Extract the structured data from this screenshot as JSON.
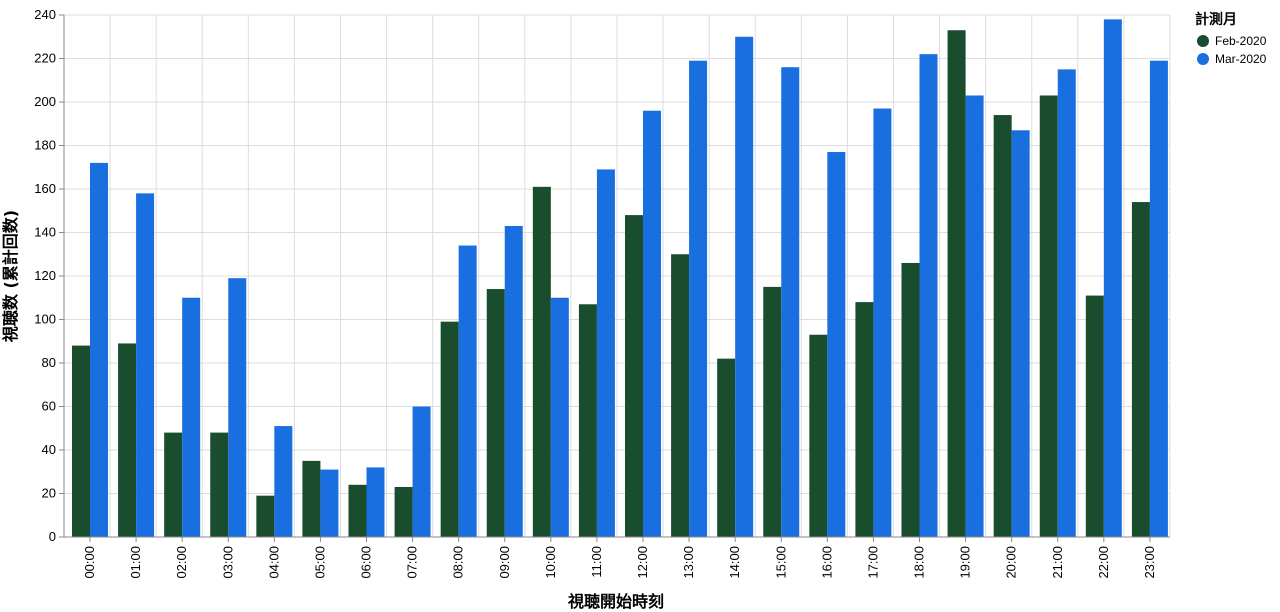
{
  "chart_data": {
    "type": "bar",
    "xlabel": "視聴開始時刻",
    "ylabel": "視聴数 (累計回数)",
    "ylim": [
      0,
      240
    ],
    "yticks": [
      0,
      20,
      40,
      60,
      80,
      100,
      120,
      140,
      160,
      180,
      200,
      220,
      240
    ],
    "grid": true,
    "legend": {
      "title": "計測月",
      "position": "top-right"
    },
    "categories": [
      "00:00",
      "01:00",
      "02:00",
      "03:00",
      "04:00",
      "05:00",
      "06:00",
      "07:00",
      "08:00",
      "09:00",
      "10:00",
      "11:00",
      "12:00",
      "13:00",
      "14:00",
      "15:00",
      "16:00",
      "17:00",
      "18:00",
      "19:00",
      "20:00",
      "21:00",
      "22:00",
      "23:00"
    ],
    "series": [
      {
        "name": "Feb-2020",
        "color": "#1a4d2e",
        "values": [
          88,
          89,
          48,
          48,
          19,
          35,
          24,
          23,
          99,
          114,
          161,
          107,
          148,
          130,
          82,
          115,
          93,
          108,
          126,
          233,
          194,
          203,
          111,
          154
        ]
      },
      {
        "name": "Mar-2020",
        "color": "#1a6fe0",
        "values": [
          172,
          158,
          110,
          119,
          51,
          31,
          32,
          60,
          134,
          143,
          110,
          169,
          196,
          219,
          230,
          216,
          177,
          197,
          222,
          203,
          187,
          215,
          238,
          219
        ]
      }
    ]
  }
}
